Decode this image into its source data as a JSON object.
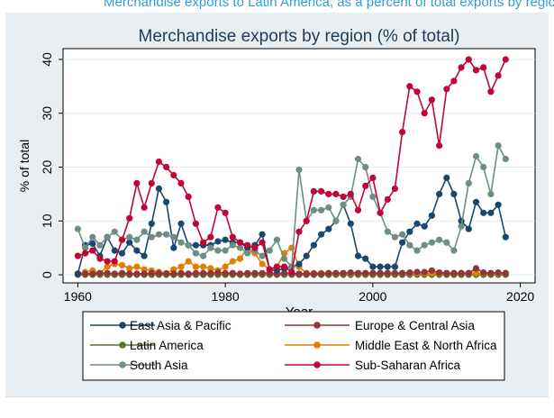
{
  "caption": "Merchandise exports to Latin America, as a percent of total exports by region",
  "chart_data": {
    "type": "line",
    "title": "Merchandise exports by region (% of total)",
    "xlabel": "Year",
    "ylabel": "% of total",
    "xlim": [
      1958,
      2022
    ],
    "ylim": [
      -1.5,
      42
    ],
    "xticks": [
      1960,
      1980,
      2000,
      2020
    ],
    "yticks": [
      0,
      10,
      20,
      30,
      40
    ],
    "grid": true,
    "legend_position": "bottom",
    "x": [
      1960,
      1961,
      1962,
      1963,
      1964,
      1965,
      1966,
      1967,
      1968,
      1969,
      1970,
      1971,
      1972,
      1973,
      1974,
      1975,
      1976,
      1977,
      1978,
      1979,
      1980,
      1981,
      1982,
      1983,
      1984,
      1985,
      1986,
      1987,
      1988,
      1989,
      1990,
      1991,
      1992,
      1993,
      1994,
      1995,
      1996,
      1997,
      1998,
      1999,
      2000,
      2001,
      2002,
      2003,
      2004,
      2005,
      2006,
      2007,
      2008,
      2009,
      2010,
      2011,
      2012,
      2013,
      2014,
      2015,
      2016,
      2017,
      2018
    ],
    "series": [
      {
        "name": "East Asia & Pacific",
        "color": "#1a476f",
        "values": [
          0.2,
          5.5,
          5.8,
          3.5,
          7.0,
          4.5,
          4.0,
          6.0,
          4.5,
          3.5,
          9.5,
          16.0,
          13.5,
          5.0,
          9.5,
          5.5,
          5.5,
          5.5,
          5.5,
          6.2,
          6.5,
          6.0,
          6.0,
          5.0,
          5.5,
          7.5,
          1.0,
          0.8,
          1.2,
          1.5,
          2.0,
          3.5,
          5.5,
          7.5,
          8.5,
          10.0,
          13.0,
          9.5,
          3.5,
          3.0,
          1.5,
          1.5,
          1.5,
          1.5,
          6.0,
          8.0,
          9.5,
          9.0,
          11.0,
          15.0,
          18.0,
          15.0,
          10.0,
          8.5,
          13.5,
          11.5,
          11.5,
          13.0,
          7.0
        ]
      },
      {
        "name": "Europe & Central Asia",
        "color": "#90353b",
        "values": [
          0.1,
          0.2,
          0.2,
          0.3,
          0.3,
          0.2,
          0.3,
          0.2,
          0.2,
          0.2,
          0.3,
          0.3,
          0.2,
          0.2,
          0.3,
          0.2,
          0.3,
          0.3,
          0.3,
          0.4,
          0.3,
          0.3,
          0.2,
          0.3,
          0.3,
          0.3,
          0.3,
          0.2,
          0.3,
          0.3,
          0.2,
          0.2,
          0.2,
          0.2,
          0.3,
          0.3,
          0.3,
          0.4,
          0.3,
          0.3,
          0.3,
          0.3,
          0.3,
          0.3,
          0.3,
          0.4,
          0.5,
          0.5,
          0.8,
          0.4,
          0.3,
          0.3,
          0.3,
          0.3,
          1.2,
          0.4,
          0.3,
          0.4,
          0.3
        ]
      },
      {
        "name": "Latin America",
        "color": "#55752f",
        "values": [
          0,
          0,
          0,
          0,
          0,
          0,
          0,
          0,
          0,
          0,
          0,
          0,
          0,
          0,
          0,
          0,
          0,
          0,
          0,
          0,
          0,
          0,
          0,
          0,
          0,
          0,
          0,
          0,
          0,
          0,
          0,
          0,
          0,
          0,
          0,
          0,
          0,
          0,
          0,
          0,
          0,
          0,
          0,
          0,
          0,
          0,
          0,
          0,
          0,
          0,
          0,
          0,
          0,
          0,
          0,
          0,
          0,
          0,
          0
        ]
      },
      {
        "name": "Middle East & North Africa",
        "color": "#e37e00",
        "values": [
          0.2,
          0.5,
          0.8,
          0.3,
          1.5,
          2.0,
          1.8,
          1.2,
          1.5,
          1.0,
          0.8,
          0.5,
          0.3,
          1.0,
          1.5,
          2.5,
          1.5,
          1.5,
          1.2,
          0.8,
          1.5,
          2.5,
          3.0,
          5.0,
          4.0,
          2.0,
          1.0,
          1.5,
          4.0,
          5.0,
          1.5,
          0.3,
          0.3,
          0.3,
          0.3,
          0.3,
          0.3,
          0.3,
          0.3,
          0.3,
          0.3,
          0.3,
          0.3,
          0.3,
          0.3,
          0.3,
          0.3,
          0.3,
          0.3,
          0.3,
          0.3,
          0.3,
          0.3,
          0.3,
          0.3,
          0.3,
          0.3,
          0.3,
          0.3
        ]
      },
      {
        "name": "South Asia",
        "color": "#6e8e84",
        "values": [
          8.5,
          5.0,
          7.0,
          5.5,
          7.0,
          8.0,
          6.5,
          7.0,
          6.5,
          8.0,
          7.0,
          7.5,
          7.5,
          7.0,
          6.0,
          5.5,
          4.0,
          3.5,
          5.0,
          4.5,
          4.5,
          5.5,
          5.0,
          4.0,
          4.5,
          3.5,
          4.5,
          6.5,
          3.0,
          1.5,
          19.5,
          10.0,
          12.0,
          12.0,
          12.5,
          10.0,
          13.0,
          14.5,
          21.5,
          20.0,
          14.5,
          11.5,
          8.0,
          7.0,
          7.5,
          5.5,
          4.5,
          5.5,
          6.0,
          6.5,
          6.0,
          4.5,
          9.0,
          17.0,
          22.0,
          20.0,
          15.0,
          24.0,
          21.5
        ]
      },
      {
        "name": "Sub-Saharan Africa",
        "color": "#c10534",
        "values": [
          3.5,
          4.0,
          4.5,
          3.0,
          2.5,
          2.5,
          6.5,
          10.5,
          17.0,
          12.5,
          17.0,
          21.0,
          20.0,
          18.5,
          17.0,
          14.5,
          9.5,
          6.0,
          7.0,
          12.5,
          11.5,
          7.0,
          6.0,
          5.5,
          5.0,
          6.0,
          1.0,
          1.5,
          1.5,
          0.5,
          8.0,
          10.0,
          15.5,
          15.5,
          15.0,
          15.0,
          14.5,
          15.0,
          12.0,
          16.5,
          18.0,
          11.5,
          14.0,
          16.0,
          26.5,
          35.0,
          34.0,
          30.0,
          32.5,
          24.0,
          34.5,
          36.0,
          38.5,
          40.0,
          38.0,
          38.5,
          34.0,
          37.0,
          40.0
        ]
      }
    ]
  }
}
